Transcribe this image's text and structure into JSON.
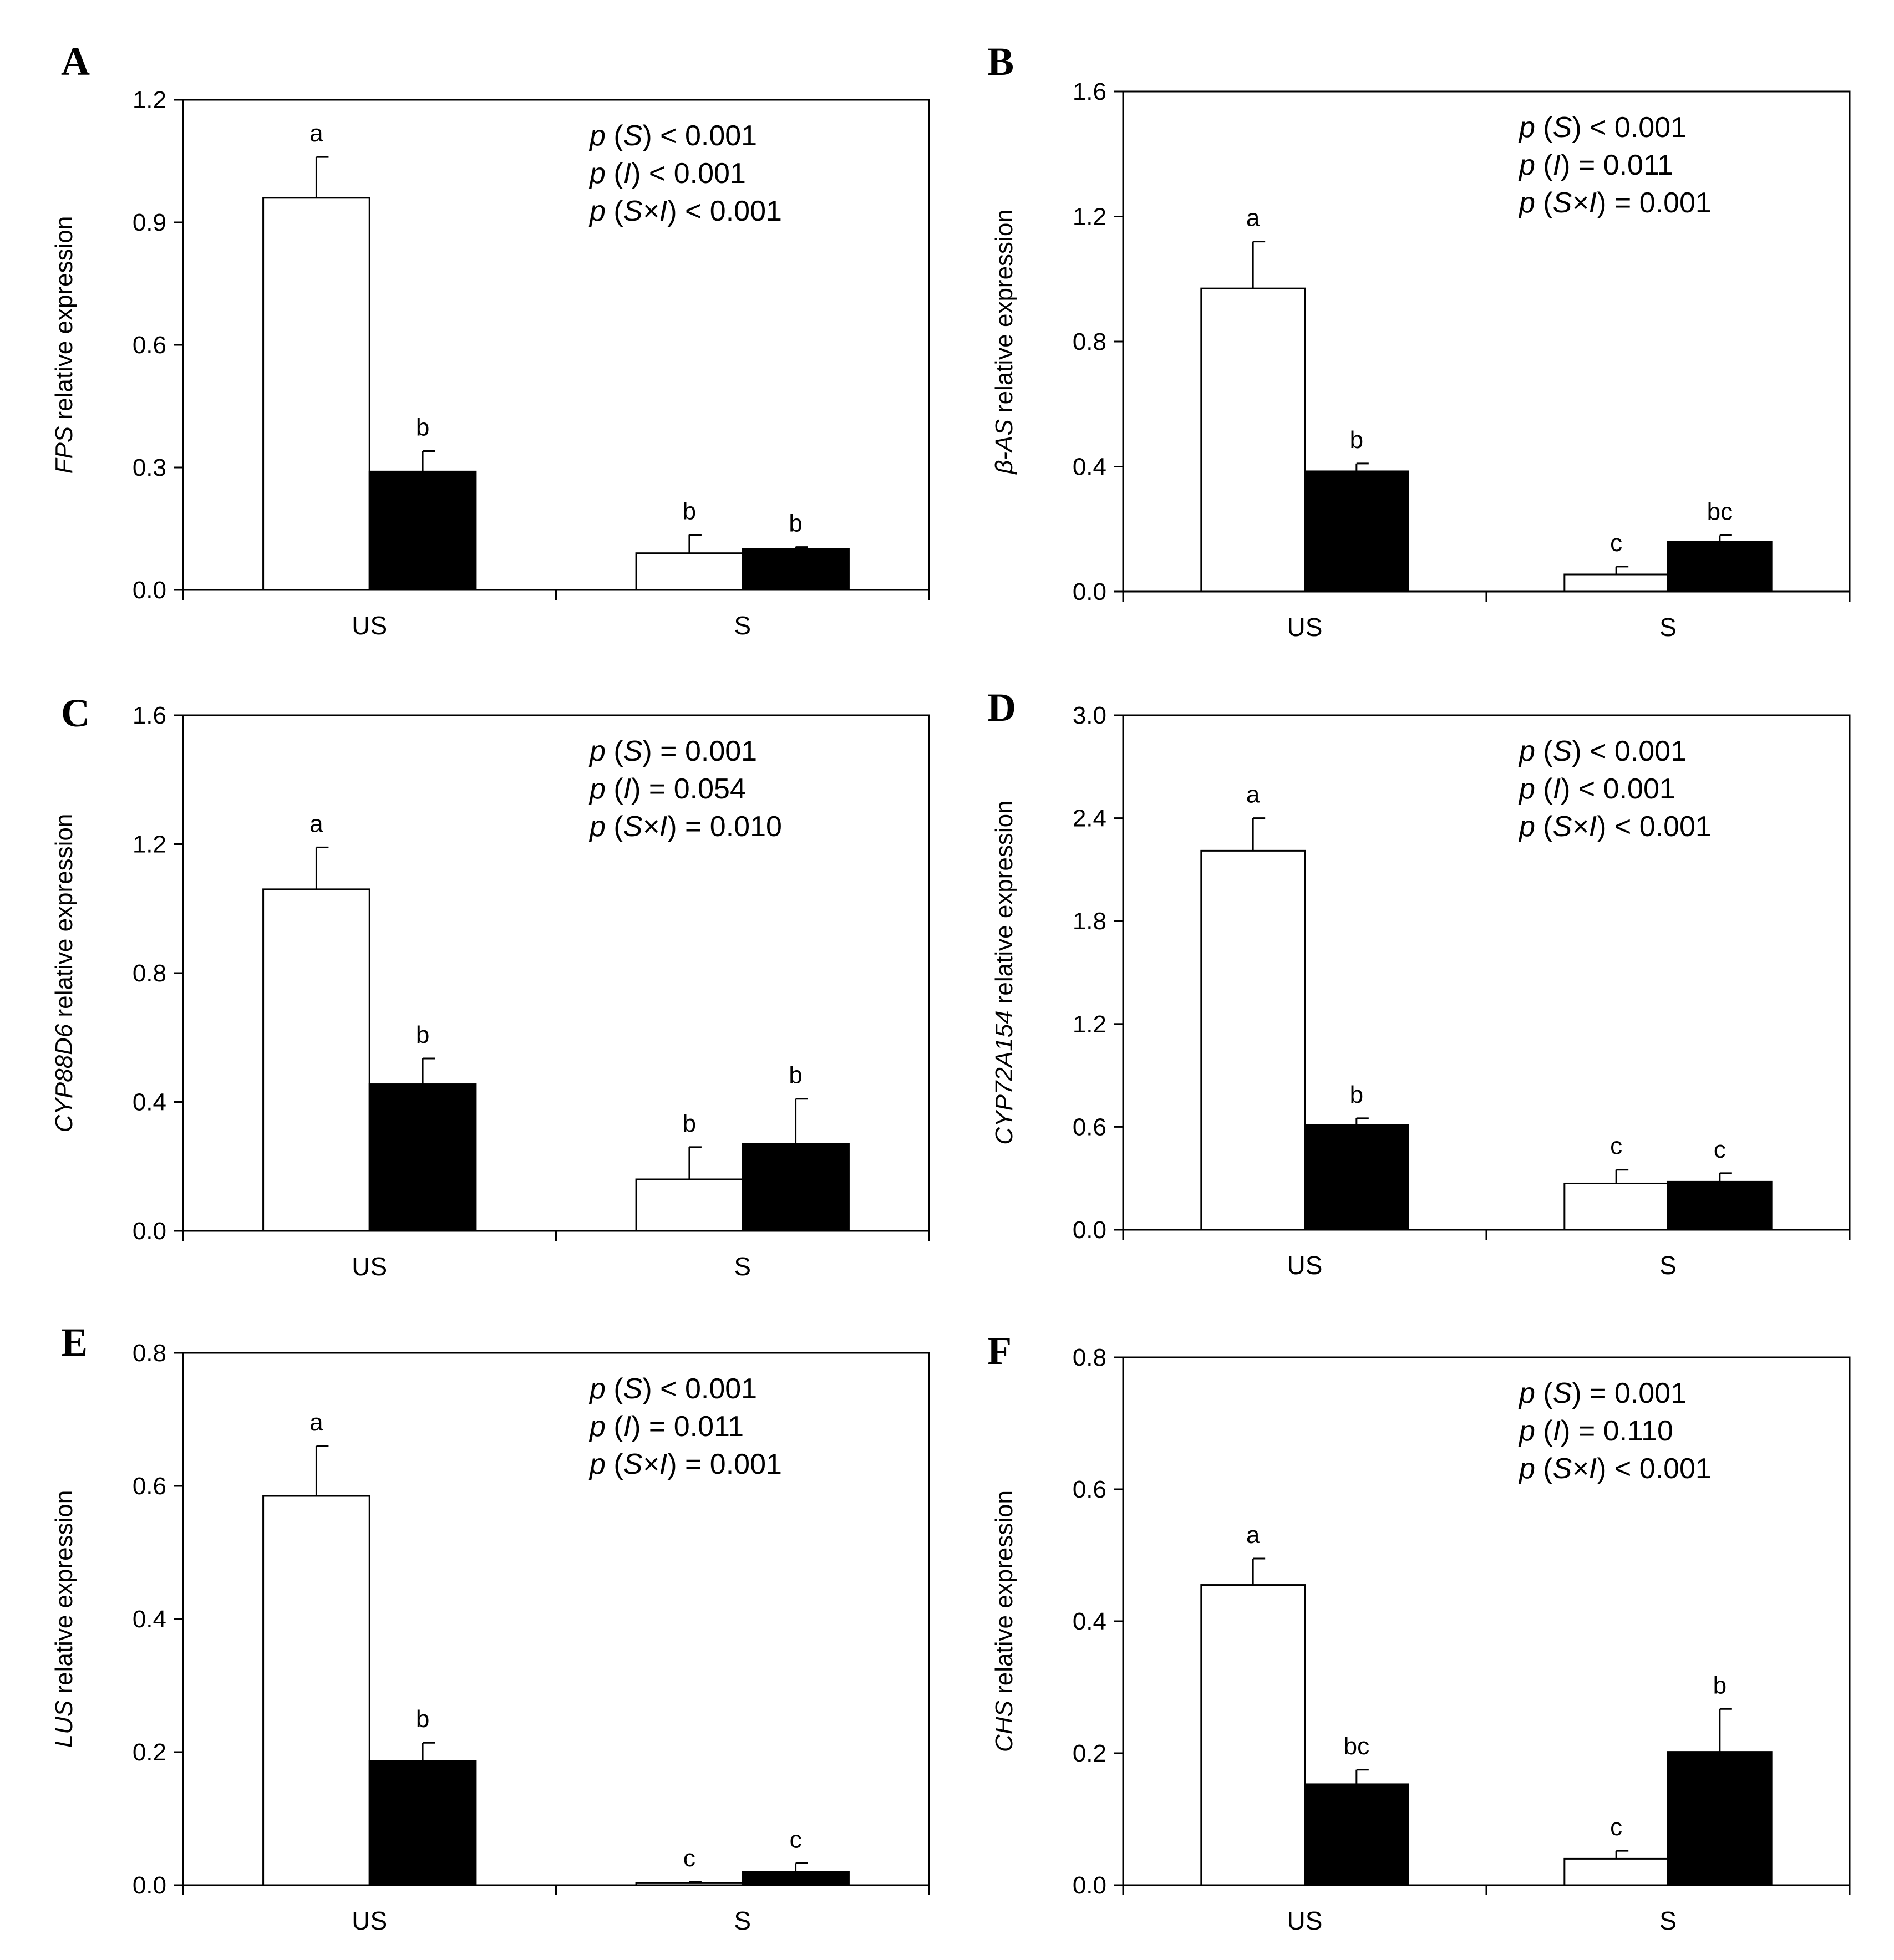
{
  "chart_data": [
    {
      "type": "bar",
      "panel": "A",
      "gene": "FPS",
      "ylabel_suffix": " relative expression",
      "ylim": [
        0,
        1.2
      ],
      "yticks": [
        "0.0",
        "0.3",
        "0.6",
        "0.9",
        "1.2"
      ],
      "categories": [
        "US",
        "S"
      ],
      "series": [
        {
          "name": "open",
          "values": [
            0.96,
            0.09
          ],
          "errors": [
            0.1,
            0.045
          ],
          "letters": [
            "a",
            "b"
          ]
        },
        {
          "name": "filled",
          "values": [
            0.29,
            0.1
          ],
          "errors": [
            0.05,
            0.005
          ],
          "letters": [
            "b",
            "b"
          ]
        }
      ],
      "stats": [
        {
          "p": "p",
          "term": "S",
          "rest": " < 0.001"
        },
        {
          "p": "p",
          "term": "I",
          "rest": " < 0.001"
        },
        {
          "p": "p",
          "term": "S×I",
          "rest": " < 0.001"
        }
      ]
    },
    {
      "type": "bar",
      "panel": "B",
      "gene": "β-AS",
      "ylabel_suffix": " relative expression",
      "ylim": [
        0,
        1.6
      ],
      "yticks": [
        "0.0",
        "0.4",
        "0.8",
        "1.2",
        "1.6"
      ],
      "categories": [
        "US",
        "S"
      ],
      "series": [
        {
          "name": "open",
          "values": [
            0.97,
            0.055
          ],
          "errors": [
            0.15,
            0.025
          ],
          "letters": [
            "a",
            "c"
          ]
        },
        {
          "name": "filled",
          "values": [
            0.385,
            0.16
          ],
          "errors": [
            0.025,
            0.02
          ],
          "letters": [
            "b",
            "bc"
          ]
        }
      ],
      "stats": [
        {
          "p": "p",
          "term": "S",
          "rest": " < 0.001"
        },
        {
          "p": "p",
          "term": "I",
          "rest": " = 0.011"
        },
        {
          "p": "p",
          "term": "S×I",
          "rest": " = 0.001"
        }
      ]
    },
    {
      "type": "bar",
      "panel": "C",
      "gene": "CYP88D6",
      "ylabel_suffix": " relative expression",
      "ylim": [
        0,
        1.6
      ],
      "yticks": [
        "0.0",
        "0.4",
        "0.8",
        "1.2",
        "1.6"
      ],
      "categories": [
        "US",
        "S"
      ],
      "series": [
        {
          "name": "open",
          "values": [
            1.06,
            0.16
          ],
          "errors": [
            0.13,
            0.1
          ],
          "letters": [
            "a",
            "b"
          ]
        },
        {
          "name": "filled",
          "values": [
            0.455,
            0.27
          ],
          "errors": [
            0.08,
            0.14
          ],
          "letters": [
            "b",
            "b"
          ]
        }
      ],
      "stats": [
        {
          "p": "p",
          "term": "S",
          "rest": " = 0.001"
        },
        {
          "p": "p",
          "term": "I",
          "rest": " = 0.054"
        },
        {
          "p": "p",
          "term": "S×I",
          "rest": " = 0.010"
        }
      ]
    },
    {
      "type": "bar",
      "panel": "D",
      "gene": "CYP72A154",
      "ylabel_suffix": "  relative expression",
      "ylim": [
        0,
        3.0
      ],
      "yticks": [
        "0.0",
        "0.6",
        "1.2",
        "1.8",
        "2.4",
        "3.0"
      ],
      "categories": [
        "US",
        "S"
      ],
      "series": [
        {
          "name": "open",
          "values": [
            2.21,
            0.27
          ],
          "errors": [
            0.19,
            0.08
          ],
          "letters": [
            "a",
            "c"
          ]
        },
        {
          "name": "filled",
          "values": [
            0.61,
            0.28
          ],
          "errors": [
            0.04,
            0.05
          ],
          "letters": [
            "b",
            "c"
          ]
        }
      ],
      "stats": [
        {
          "p": "p",
          "term": "S",
          "rest": " < 0.001"
        },
        {
          "p": "p",
          "term": "I",
          "rest": " < 0.001"
        },
        {
          "p": "p",
          "term": "S×I",
          "rest": " < 0.001"
        }
      ]
    },
    {
      "type": "bar",
      "panel": "E",
      "gene": "LUS",
      "ylabel_suffix": " relative expression",
      "ylim": [
        0,
        0.8
      ],
      "yticks": [
        "0.0",
        "0.2",
        "0.4",
        "0.6",
        "0.8"
      ],
      "categories": [
        "US",
        "S"
      ],
      "series": [
        {
          "name": "open",
          "values": [
            0.585,
            0.003
          ],
          "errors": [
            0.075,
            0.002
          ],
          "letters": [
            "a",
            "c"
          ]
        },
        {
          "name": "filled",
          "values": [
            0.187,
            0.02
          ],
          "errors": [
            0.027,
            0.013
          ],
          "letters": [
            "b",
            "c"
          ]
        }
      ],
      "stats": [
        {
          "p": "p",
          "term": "S",
          "rest": " < 0.001"
        },
        {
          "p": "p",
          "term": "I",
          "rest": " = 0.011"
        },
        {
          "p": "p",
          "term": "S×I",
          "rest": " = 0.001"
        }
      ]
    },
    {
      "type": "bar",
      "panel": "F",
      "gene": "CHS",
      "ylabel_suffix": " relative  expression",
      "ylim": [
        0,
        0.8
      ],
      "yticks": [
        "0.0",
        "0.2",
        "0.4",
        "0.6",
        "0.8"
      ],
      "categories": [
        "US",
        "S"
      ],
      "series": [
        {
          "name": "open",
          "values": [
            0.455,
            0.04
          ],
          "errors": [
            0.04,
            0.012
          ],
          "letters": [
            "a",
            "c"
          ]
        },
        {
          "name": "filled",
          "values": [
            0.153,
            0.202
          ],
          "errors": [
            0.022,
            0.065
          ],
          "letters": [
            "bc",
            "b"
          ]
        }
      ],
      "stats": [
        {
          "p": "p",
          "term": "S",
          "rest": " = 0.001"
        },
        {
          "p": "p",
          "term": "I",
          "rest": " = 0.110"
        },
        {
          "p": "p",
          "term": "S×I",
          "rest": " < 0.001"
        }
      ]
    }
  ]
}
